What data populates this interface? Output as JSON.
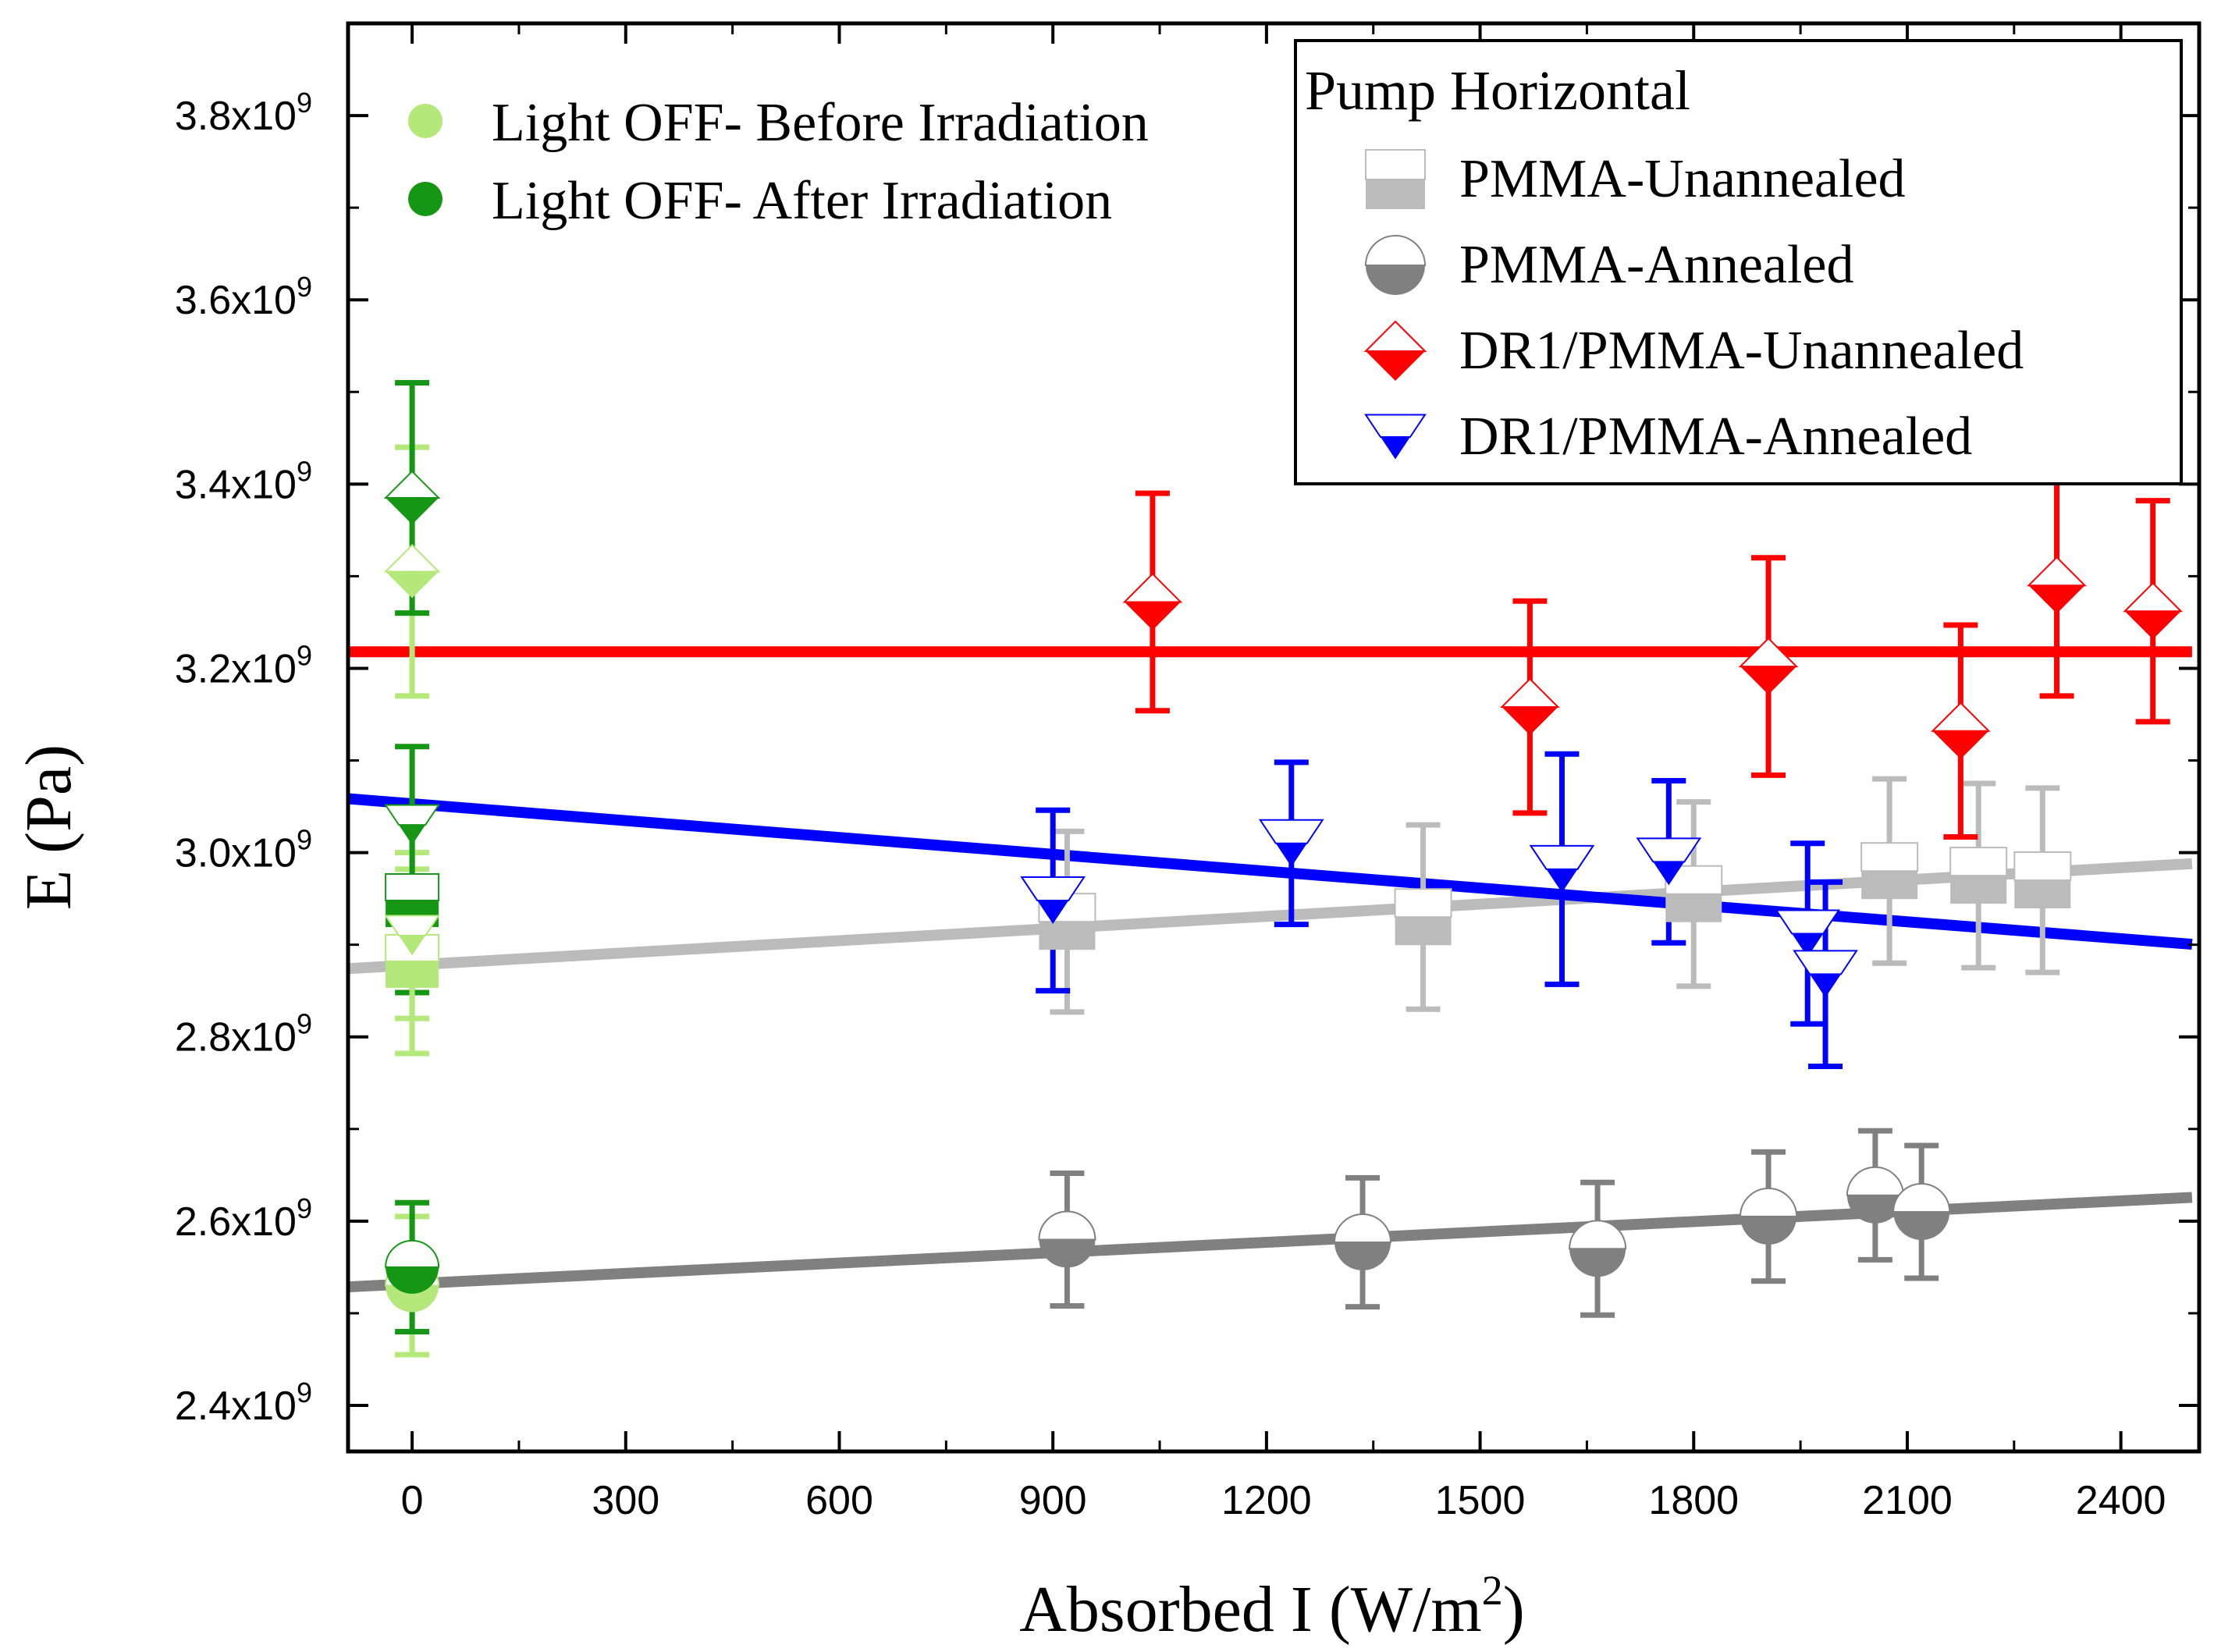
{
  "chart_data": {
    "type": "scatter",
    "xlabel": "Absorbed I (W/m",
    "xlabel_sup": "2",
    "xlabel_close": ")",
    "ylabel": "E (Pa)",
    "xlim": [
      -90,
      2510
    ],
    "ylim": [
      2350000000.0,
      3900000000.0
    ],
    "x_ticks": [
      0,
      300,
      600,
      900,
      1200,
      1500,
      1800,
      2100,
      2400
    ],
    "y_ticks": [
      {
        "value": 2400000000.0,
        "mantissa": "2.4x10",
        "exp": "9"
      },
      {
        "value": 2600000000.0,
        "mantissa": "2.6x10",
        "exp": "9"
      },
      {
        "value": 2800000000.0,
        "mantissa": "2.8x10",
        "exp": "9"
      },
      {
        "value": 3000000000.0,
        "mantissa": "3.0x10",
        "exp": "9"
      },
      {
        "value": 3200000000.0,
        "mantissa": "3.2x10",
        "exp": "9"
      },
      {
        "value": 3400000000.0,
        "mantissa": "3.4x10",
        "exp": "9"
      },
      {
        "value": 3600000000.0,
        "mantissa": "3.6x10",
        "exp": "9"
      },
      {
        "value": 3800000000.0,
        "mantissa": "3.8x10",
        "exp": "9"
      }
    ],
    "legend_title": "Pump Horizontal",
    "light_off_legend": [
      {
        "label": "Light OFF- Before Irradiation",
        "color": "#b5e87a"
      },
      {
        "label": "Light OFF- After Irradiation",
        "color": "#159615"
      }
    ],
    "series": [
      {
        "name": "PMMA-Unannealed",
        "marker": "square",
        "color": "#bbbbbb",
        "fit": [
          2878000000.0,
          44000.0
        ],
        "points": [
          {
            "x": 920,
            "y": 2925000000.0,
            "err": 98000000.0
          },
          {
            "x": 1420,
            "y": 2930000000.0,
            "err": 100000000.0
          },
          {
            "x": 1800,
            "y": 2955000000.0,
            "err": 100000000.0
          },
          {
            "x": 2075,
            "y": 2980000000.0,
            "err": 100000000.0
          },
          {
            "x": 2200,
            "y": 2975000000.0,
            "err": 100000000.0
          },
          {
            "x": 2290,
            "y": 2970000000.0,
            "err": 100000000.0
          }
        ]
      },
      {
        "name": "PMMA-Annealed",
        "marker": "circle",
        "color": "#808080",
        "fit": [
          2532000000.0,
          37500.0
        ],
        "points": [
          {
            "x": 920,
            "y": 2580000000.0,
            "err": 72000000.0
          },
          {
            "x": 1335,
            "y": 2577000000.0,
            "err": 70000000.0
          },
          {
            "x": 1665,
            "y": 2570000000.0,
            "err": 72000000.0
          },
          {
            "x": 1905,
            "y": 2605000000.0,
            "err": 70000000.0
          },
          {
            "x": 2055,
            "y": 2628000000.0,
            "err": 70000000.0
          },
          {
            "x": 2120,
            "y": 2610000000.0,
            "err": 72000000.0
          }
        ]
      },
      {
        "name": "DR1/PMMA-Unannealed",
        "marker": "diamond",
        "color": "#ff0000",
        "fit": [
          3218000000.0,
          0
        ],
        "points": [
          {
            "x": 1040,
            "y": 3272000000.0,
            "err": 118000000.0
          },
          {
            "x": 1570,
            "y": 3158000000.0,
            "err": 115000000.0
          },
          {
            "x": 1905,
            "y": 3202000000.0,
            "err": 118000000.0
          },
          {
            "x": 2175,
            "y": 3132000000.0,
            "err": 115000000.0
          },
          {
            "x": 2310,
            "y": 3290000000.0,
            "err": 120000000.0
          },
          {
            "x": 2445,
            "y": 3262000000.0,
            "err": 120000000.0
          }
        ]
      },
      {
        "name": "DR1/PMMA-Annealed",
        "marker": "triangle-down",
        "color": "#0000ff",
        "fit": [
          3053000000.0,
          -61000.0
        ],
        "points": [
          {
            "x": 900,
            "y": 2948000000.0,
            "err": 98000000.0
          },
          {
            "x": 1235,
            "y": 3010000000.0,
            "err": 88000000.0
          },
          {
            "x": 1615,
            "y": 2982000000.0,
            "err": 125000000.0
          },
          {
            "x": 1765,
            "y": 2990000000.0,
            "err": 88000000.0
          },
          {
            "x": 1960,
            "y": 2912000000.0,
            "err": 98000000.0
          },
          {
            "x": 1985,
            "y": 2868000000.0,
            "err": 100000000.0
          }
        ]
      }
    ],
    "light_off_points": [
      {
        "x": 0,
        "y": 3305000000.0,
        "err": 135000000.0,
        "marker": "diamond",
        "color": "#b5e87a"
      },
      {
        "x": 0,
        "y": 3385000000.0,
        "err": 125000000.0,
        "marker": "diamond",
        "color": "#159615"
      },
      {
        "x": 0,
        "y": 2882000000.0,
        "err": 100000000.0,
        "marker": "square",
        "color": "#b5e87a"
      },
      {
        "x": 0,
        "y": 2948000000.0,
        "err": 100000000.0,
        "marker": "square",
        "color": "#159615"
      },
      {
        "x": 0,
        "y": 2910000000.0,
        "err": 90000000.0,
        "marker": "triangle-down",
        "color": "#b5e87a"
      },
      {
        "x": 0,
        "y": 3030000000.0,
        "err": 85000000.0,
        "marker": "triangle-down",
        "color": "#159615"
      },
      {
        "x": 0,
        "y": 2530000000.0,
        "err": 75000000.0,
        "marker": "circle",
        "color": "#b5e87a"
      },
      {
        "x": 0,
        "y": 2550000000.0,
        "err": 70000000.0,
        "marker": "circle",
        "color": "#159615"
      }
    ]
  }
}
